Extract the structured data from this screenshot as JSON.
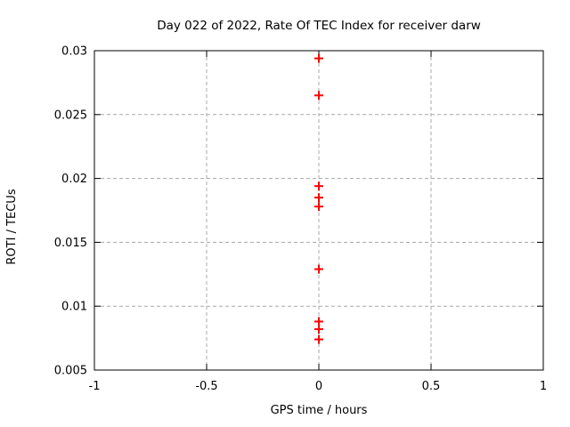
{
  "chart_data": {
    "type": "scatter",
    "title": "Day 022 of 2022, Rate Of TEC Index for receiver darw",
    "xlabel": "GPS time / hours",
    "ylabel": "ROTI / TECUs",
    "xlim": [
      -1,
      1
    ],
    "ylim": [
      0.005,
      0.03
    ],
    "xticks": [
      {
        "value": -1,
        "label": "-1"
      },
      {
        "value": -0.5,
        "label": "-0.5"
      },
      {
        "value": 0,
        "label": "0"
      },
      {
        "value": 0.5,
        "label": "0.5"
      },
      {
        "value": 1,
        "label": "1"
      }
    ],
    "yticks": [
      {
        "value": 0.005,
        "label": "0.005"
      },
      {
        "value": 0.01,
        "label": "0.01"
      },
      {
        "value": 0.015,
        "label": "0.015"
      },
      {
        "value": 0.02,
        "label": "0.02"
      },
      {
        "value": 0.025,
        "label": "0.025"
      },
      {
        "value": 0.03,
        "label": "0.03"
      }
    ],
    "grid": {
      "shown": true,
      "style": "dashed"
    },
    "legend": "none",
    "series": [
      {
        "name": "ROTI",
        "marker": "plus",
        "color": "#ff0000",
        "points": [
          {
            "x": 0,
            "y": 0.0294
          },
          {
            "x": 0,
            "y": 0.0265
          },
          {
            "x": 0,
            "y": 0.0194
          },
          {
            "x": 0,
            "y": 0.0185
          },
          {
            "x": 0,
            "y": 0.0178
          },
          {
            "x": 0,
            "y": 0.0129
          },
          {
            "x": 0,
            "y": 0.0088
          },
          {
            "x": 0,
            "y": 0.0082
          },
          {
            "x": 0,
            "y": 0.0074
          }
        ]
      }
    ]
  },
  "colors": {
    "background": "#ffffff",
    "axis": "#000000",
    "grid": "#a8a8a8",
    "marker": "#ff0000",
    "text": "#000000"
  }
}
